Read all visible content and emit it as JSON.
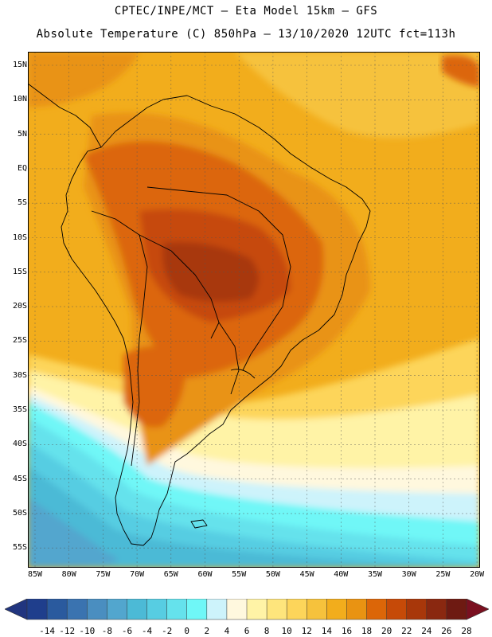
{
  "header": {
    "line1": "CPTEC/INPE/MCT  —   Eta Model 15km  —  GFS",
    "line2": "Absolute Temperature (C) 850hPa — 13/10/2020 12UTC fct=113h"
  },
  "axes": {
    "lat_labels": [
      "15N",
      "10N",
      "5N",
      "EQ",
      "5S",
      "10S",
      "15S",
      "20S",
      "25S",
      "30S",
      "35S",
      "40S",
      "45S",
      "50S",
      "55S"
    ],
    "lon_labels": [
      "85W",
      "80W",
      "75W",
      "70W",
      "65W",
      "60W",
      "55W",
      "50W",
      "45W",
      "40W",
      "35W",
      "30W",
      "25W",
      "20W"
    ]
  },
  "colorbar": {
    "ticks": [
      "-14",
      "-12",
      "-10",
      "-8",
      "-6",
      "-4",
      "-2",
      "0",
      "2",
      "4",
      "6",
      "8",
      "10",
      "12",
      "14",
      "16",
      "18",
      "20",
      "22",
      "24",
      "26",
      "28"
    ],
    "colors": [
      "#1f3e8c",
      "#2a5a9e",
      "#3a73b0",
      "#4a8ec0",
      "#52a6ce",
      "#4cbad6",
      "#57cde2",
      "#65e2ec",
      "#6ff7f7",
      "#cdf3fb",
      "#fff8de",
      "#fff3a6",
      "#fee57c",
      "#fdd55a",
      "#f6c23c",
      "#f2ad1c",
      "#e99312",
      "#dc6608",
      "#c64a08",
      "#a8370a",
      "#8a2810",
      "#6e1a12"
    ],
    "under_color": "#21357f",
    "over_color": "#7a1020"
  }
}
